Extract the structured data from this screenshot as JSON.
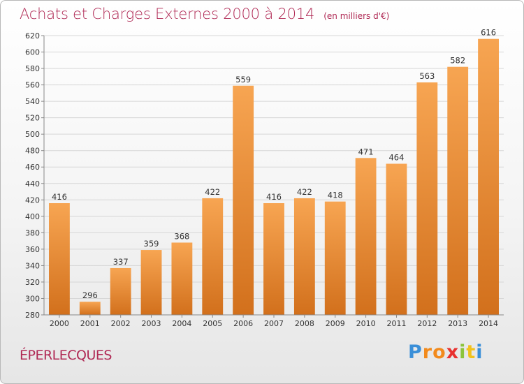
{
  "title": "Achats et Charges Externes 2000 à 2014",
  "unit_note": "(en milliers d'€)",
  "commune": "ÉPERLECQUES",
  "logo": {
    "letters": [
      "P",
      "r",
      "o",
      "x",
      "i",
      "t",
      "i"
    ],
    "colors": [
      "#3a8fd8",
      "#f28a1c",
      "#f28a1c",
      "#e8312f",
      "#8cc43c",
      "#f2c21c",
      "#3a8fd8"
    ]
  },
  "colors": {
    "bar_top": "#f7a552",
    "bar_bottom": "#d2701c",
    "accent": "#b02a55"
  },
  "chart_data": {
    "type": "bar",
    "categories": [
      "2000",
      "2001",
      "2002",
      "2003",
      "2004",
      "2005",
      "2006",
      "2007",
      "2008",
      "2009",
      "2010",
      "2011",
      "2012",
      "2013",
      "2014"
    ],
    "values": [
      416,
      296,
      337,
      359,
      368,
      422,
      559,
      416,
      422,
      418,
      471,
      464,
      563,
      582,
      616
    ],
    "ylim": [
      280,
      620
    ],
    "yticks": [
      280,
      300,
      320,
      340,
      360,
      380,
      400,
      420,
      440,
      460,
      480,
      500,
      520,
      540,
      560,
      580,
      600,
      620
    ],
    "grid": true,
    "legend": "none"
  }
}
